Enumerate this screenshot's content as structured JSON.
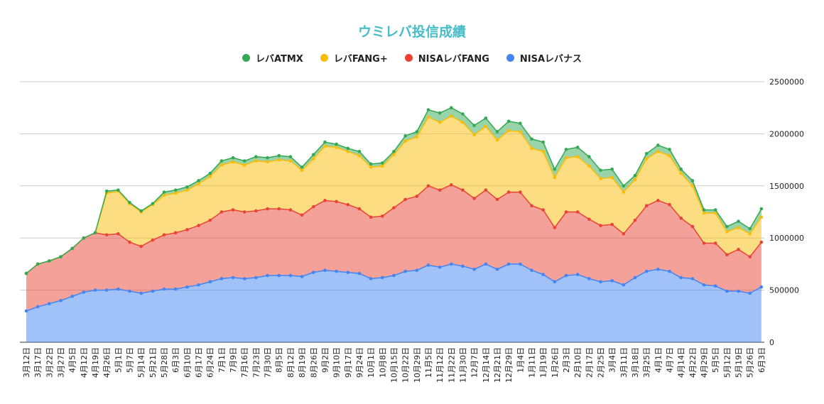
{
  "chart_data": {
    "type": "area",
    "stacked": true,
    "title": "ウミレバ投信成績",
    "legend_position": "top",
    "grid": true,
    "ylim": [
      0,
      2500000
    ],
    "yticks": [
      "0",
      "500000",
      "1000000",
      "1500000",
      "2000000",
      "2500000"
    ],
    "categories": [
      "3月12日",
      "3月17日",
      "3月22日",
      "3月27日",
      "4月5日",
      "4月12日",
      "4月19日",
      "4月26日",
      "5月1日",
      "5月7日",
      "5月14日",
      "5月21日",
      "5月28日",
      "6月3日",
      "6月10日",
      "6月17日",
      "6月24日",
      "7月1日",
      "7月9日",
      "7月16日",
      "7月23日",
      "7月30日",
      "8月5日",
      "8月12日",
      "8月19日",
      "8月26日",
      "9月2日",
      "9月10日",
      "9月17日",
      "9月24日",
      "10月1日",
      "10月8日",
      "10月15日",
      "10月22日",
      "10月29日",
      "11月5日",
      "11月12日",
      "11月22日",
      "11月30日",
      "12月7日",
      "12月14日",
      "12月21日",
      "12月29日",
      "1月4日",
      "1月11日",
      "1月19日",
      "1月26日",
      "2月3日",
      "2月10日",
      "2月17日",
      "2月25日",
      "3月4日",
      "3月11日",
      "3月18日",
      "3月25日",
      "4月1日",
      "4月7日",
      "4月14日",
      "4月22日",
      "4月29日",
      "5月5日",
      "5月12日",
      "5月19日",
      "5月26日",
      "6月3日"
    ],
    "series": [
      {
        "name": "NISAレバナス",
        "color": "#4285f4",
        "values": [
          300000,
          340000,
          370000,
          400000,
          440000,
          480000,
          500000,
          500000,
          510000,
          490000,
          470000,
          490000,
          510000,
          510000,
          530000,
          550000,
          580000,
          610000,
          620000,
          610000,
          620000,
          640000,
          640000,
          640000,
          630000,
          670000,
          690000,
          680000,
          670000,
          660000,
          610000,
          620000,
          640000,
          680000,
          690000,
          740000,
          720000,
          750000,
          730000,
          700000,
          750000,
          700000,
          750000,
          750000,
          690000,
          650000,
          580000,
          640000,
          650000,
          610000,
          580000,
          590000,
          550000,
          620000,
          680000,
          700000,
          680000,
          620000,
          610000,
          550000,
          540000,
          490000,
          490000,
          470000,
          530000
        ]
      },
      {
        "name": "NISAレバFANG",
        "color": "#ea4335",
        "values": [
          360000,
          410000,
          410000,
          420000,
          460000,
          520000,
          550000,
          530000,
          530000,
          470000,
          450000,
          490000,
          520000,
          540000,
          550000,
          570000,
          590000,
          640000,
          650000,
          640000,
          640000,
          640000,
          640000,
          630000,
          590000,
          630000,
          670000,
          670000,
          650000,
          620000,
          590000,
          590000,
          650000,
          690000,
          710000,
          760000,
          740000,
          760000,
          730000,
          680000,
          710000,
          670000,
          690000,
          690000,
          620000,
          620000,
          520000,
          610000,
          600000,
          570000,
          540000,
          540000,
          490000,
          550000,
          630000,
          660000,
          640000,
          570000,
          500000,
          400000,
          410000,
          350000,
          400000,
          350000,
          430000
        ]
      },
      {
        "name": "レバFANG+",
        "color": "#fbbc04",
        "values": [
          0,
          0,
          0,
          0,
          0,
          0,
          0,
          400000,
          410000,
          370000,
          330000,
          340000,
          380000,
          380000,
          380000,
          400000,
          420000,
          450000,
          460000,
          450000,
          480000,
          450000,
          470000,
          470000,
          430000,
          460000,
          520000,
          520000,
          510000,
          510000,
          480000,
          480000,
          510000,
          560000,
          570000,
          660000,
          650000,
          660000,
          650000,
          610000,
          610000,
          570000,
          590000,
          580000,
          550000,
          560000,
          480000,
          520000,
          530000,
          510000,
          450000,
          450000,
          400000,
          390000,
          450000,
          470000,
          470000,
          430000,
          390000,
          290000,
          290000,
          220000,
          210000,
          220000,
          240000
        ]
      },
      {
        "name": "レバATMX",
        "color": "#34a853",
        "values": [
          0,
          0,
          0,
          0,
          0,
          0,
          0,
          20000,
          10000,
          10000,
          10000,
          10000,
          30000,
          30000,
          30000,
          30000,
          30000,
          40000,
          40000,
          40000,
          40000,
          40000,
          40000,
          40000,
          30000,
          40000,
          40000,
          30000,
          30000,
          40000,
          30000,
          30000,
          30000,
          50000,
          50000,
          70000,
          90000,
          80000,
          80000,
          90000,
          80000,
          80000,
          90000,
          80000,
          90000,
          90000,
          80000,
          80000,
          90000,
          90000,
          80000,
          80000,
          60000,
          40000,
          50000,
          60000,
          60000,
          40000,
          50000,
          30000,
          30000,
          50000,
          60000,
          50000,
          80000
        ]
      }
    ],
    "legend_order": [
      "レバATMX",
      "レバFANG+",
      "NISAレバFANG",
      "NISAレバナス"
    ]
  }
}
